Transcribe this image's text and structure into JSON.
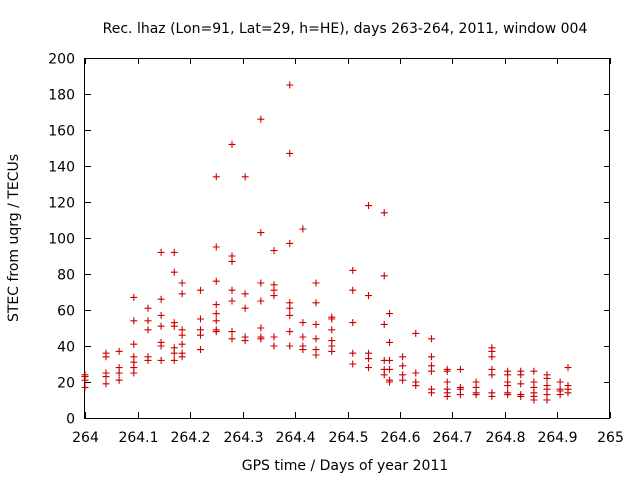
{
  "chart_data": {
    "type": "scatter",
    "title": "Rec. lhaz (Lon=91, Lat=29, h=HE), days 263-264, 2011, window 004",
    "xlabel": "GPS time / Days of year 2011",
    "ylabel": "STEC from uqrg / TECUs",
    "xlim": [
      264,
      265
    ],
    "ylim": [
      0,
      200
    ],
    "xticks": [
      "264",
      "264.1",
      "264.2",
      "264.3",
      "264.4",
      "264.5",
      "264.6",
      "264.7",
      "264.8",
      "264.9",
      "265"
    ],
    "yticks": [
      "0",
      "20",
      "40",
      "60",
      "80",
      "100",
      "120",
      "140",
      "160",
      "180",
      "200"
    ],
    "grid": false,
    "marker": "+",
    "color": "#cc0000",
    "series": [
      {
        "points": [
          [
            264.0,
            24
          ],
          [
            264.0,
            21
          ],
          [
            264.0,
            17
          ],
          [
            264.0,
            23
          ],
          [
            264.04,
            36
          ],
          [
            264.04,
            34
          ],
          [
            264.04,
            25
          ],
          [
            264.04,
            23
          ],
          [
            264.04,
            19
          ],
          [
            264.065,
            37
          ],
          [
            264.065,
            28
          ],
          [
            264.065,
            25
          ],
          [
            264.065,
            21
          ],
          [
            264.093,
            67
          ],
          [
            264.093,
            54
          ],
          [
            264.093,
            41
          ],
          [
            264.093,
            34
          ],
          [
            264.093,
            31
          ],
          [
            264.093,
            28
          ],
          [
            264.093,
            25
          ],
          [
            264.12,
            61
          ],
          [
            264.12,
            54
          ],
          [
            264.12,
            49
          ],
          [
            264.12,
            34
          ],
          [
            264.12,
            32
          ],
          [
            264.145,
            92
          ],
          [
            264.145,
            66
          ],
          [
            264.145,
            57
          ],
          [
            264.145,
            51
          ],
          [
            264.145,
            42
          ],
          [
            264.145,
            40
          ],
          [
            264.145,
            32
          ],
          [
            264.17,
            92
          ],
          [
            264.17,
            81
          ],
          [
            264.17,
            53
          ],
          [
            264.17,
            51
          ],
          [
            264.17,
            39
          ],
          [
            264.17,
            36
          ],
          [
            264.17,
            32
          ],
          [
            264.185,
            75
          ],
          [
            264.185,
            69
          ],
          [
            264.185,
            49
          ],
          [
            264.185,
            46
          ],
          [
            264.185,
            41
          ],
          [
            264.185,
            36
          ],
          [
            264.185,
            34
          ],
          [
            264.22,
            71
          ],
          [
            264.22,
            55
          ],
          [
            264.22,
            49
          ],
          [
            264.22,
            46
          ],
          [
            264.22,
            38
          ],
          [
            264.25,
            134
          ],
          [
            264.25,
            95
          ],
          [
            264.25,
            76
          ],
          [
            264.25,
            63
          ],
          [
            264.25,
            58
          ],
          [
            264.25,
            54
          ],
          [
            264.25,
            49
          ],
          [
            264.25,
            48
          ],
          [
            264.28,
            152
          ],
          [
            264.28,
            90
          ],
          [
            264.28,
            87
          ],
          [
            264.28,
            71
          ],
          [
            264.28,
            65
          ],
          [
            264.28,
            48
          ],
          [
            264.28,
            44
          ],
          [
            264.305,
            134
          ],
          [
            264.305,
            69
          ],
          [
            264.305,
            61
          ],
          [
            264.305,
            45
          ],
          [
            264.305,
            43
          ],
          [
            264.335,
            166
          ],
          [
            264.335,
            103
          ],
          [
            264.335,
            75
          ],
          [
            264.335,
            65
          ],
          [
            264.335,
            50
          ],
          [
            264.335,
            45
          ],
          [
            264.335,
            44
          ],
          [
            264.36,
            93
          ],
          [
            264.36,
            74
          ],
          [
            264.36,
            71
          ],
          [
            264.36,
            68
          ],
          [
            264.36,
            45
          ],
          [
            264.36,
            40
          ],
          [
            264.39,
            185
          ],
          [
            264.39,
            147
          ],
          [
            264.39,
            97
          ],
          [
            264.39,
            64
          ],
          [
            264.39,
            61
          ],
          [
            264.39,
            57
          ],
          [
            264.39,
            48
          ],
          [
            264.39,
            40
          ],
          [
            264.415,
            105
          ],
          [
            264.415,
            53
          ],
          [
            264.415,
            45
          ],
          [
            264.415,
            40
          ],
          [
            264.415,
            38
          ],
          [
            264.44,
            75
          ],
          [
            264.44,
            64
          ],
          [
            264.44,
            52
          ],
          [
            264.44,
            44
          ],
          [
            264.44,
            38
          ],
          [
            264.44,
            35
          ],
          [
            264.47,
            56
          ],
          [
            264.47,
            55
          ],
          [
            264.47,
            49
          ],
          [
            264.47,
            43
          ],
          [
            264.47,
            40
          ],
          [
            264.47,
            37
          ],
          [
            264.51,
            82
          ],
          [
            264.51,
            71
          ],
          [
            264.51,
            53
          ],
          [
            264.51,
            36
          ],
          [
            264.51,
            30
          ],
          [
            264.54,
            118
          ],
          [
            264.54,
            68
          ],
          [
            264.54,
            36
          ],
          [
            264.54,
            33
          ],
          [
            264.54,
            28
          ],
          [
            264.57,
            114
          ],
          [
            264.57,
            79
          ],
          [
            264.57,
            52
          ],
          [
            264.57,
            32
          ],
          [
            264.57,
            27
          ],
          [
            264.57,
            24
          ],
          [
            264.58,
            58
          ],
          [
            264.58,
            42
          ],
          [
            264.58,
            32
          ],
          [
            264.58,
            27
          ],
          [
            264.58,
            21
          ],
          [
            264.58,
            20
          ],
          [
            264.605,
            34
          ],
          [
            264.605,
            29
          ],
          [
            264.605,
            24
          ],
          [
            264.605,
            21
          ],
          [
            264.63,
            47
          ],
          [
            264.63,
            25
          ],
          [
            264.63,
            20
          ],
          [
            264.63,
            18
          ],
          [
            264.66,
            44
          ],
          [
            264.66,
            34
          ],
          [
            264.66,
            29
          ],
          [
            264.66,
            26
          ],
          [
            264.66,
            16
          ],
          [
            264.66,
            14
          ],
          [
            264.69,
            27
          ],
          [
            264.69,
            26
          ],
          [
            264.69,
            20
          ],
          [
            264.69,
            16
          ],
          [
            264.69,
            14
          ],
          [
            264.69,
            12
          ],
          [
            264.715,
            27
          ],
          [
            264.715,
            17
          ],
          [
            264.715,
            16
          ],
          [
            264.715,
            13
          ],
          [
            264.745,
            20
          ],
          [
            264.745,
            17
          ],
          [
            264.745,
            14
          ],
          [
            264.745,
            13
          ],
          [
            264.775,
            39
          ],
          [
            264.775,
            37
          ],
          [
            264.775,
            34
          ],
          [
            264.775,
            27
          ],
          [
            264.775,
            24
          ],
          [
            264.775,
            14
          ],
          [
            264.775,
            12
          ],
          [
            264.805,
            26
          ],
          [
            264.805,
            24
          ],
          [
            264.805,
            20
          ],
          [
            264.805,
            18
          ],
          [
            264.805,
            14
          ],
          [
            264.805,
            13
          ],
          [
            264.83,
            26
          ],
          [
            264.83,
            24
          ],
          [
            264.83,
            19
          ],
          [
            264.83,
            13
          ],
          [
            264.83,
            12
          ],
          [
            264.855,
            26
          ],
          [
            264.855,
            20
          ],
          [
            264.855,
            17
          ],
          [
            264.855,
            14
          ],
          [
            264.855,
            12
          ],
          [
            264.855,
            10
          ],
          [
            264.88,
            24
          ],
          [
            264.88,
            22
          ],
          [
            264.88,
            18
          ],
          [
            264.88,
            16
          ],
          [
            264.88,
            13
          ],
          [
            264.88,
            10
          ],
          [
            264.905,
            20
          ],
          [
            264.905,
            16
          ],
          [
            264.905,
            15
          ],
          [
            264.905,
            13
          ],
          [
            264.92,
            28
          ],
          [
            264.92,
            18
          ],
          [
            264.92,
            16
          ],
          [
            264.92,
            14
          ]
        ]
      }
    ]
  }
}
